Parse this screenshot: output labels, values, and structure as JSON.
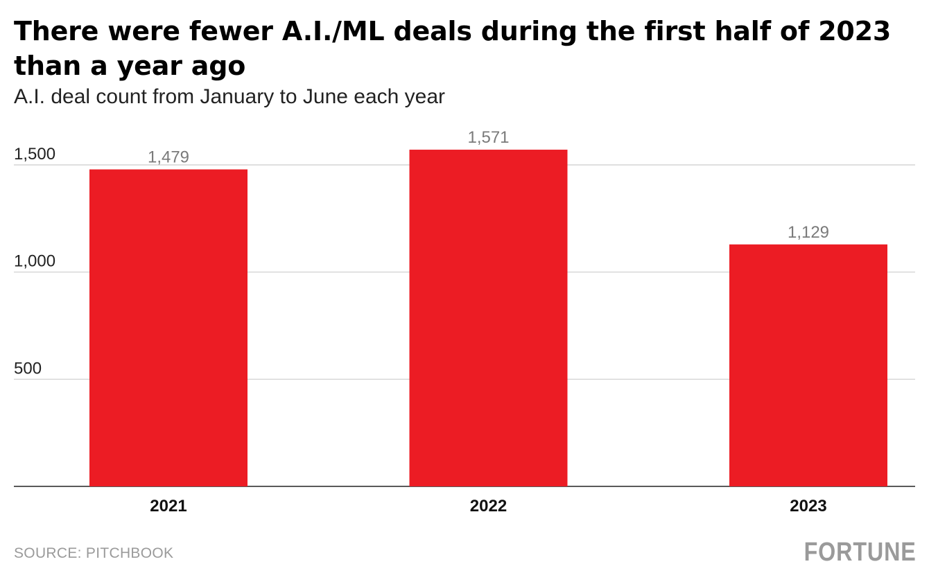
{
  "chart_data": {
    "type": "bar",
    "title": "There were fewer A.I./ML deals during the first half of 2023 than a year ago",
    "subtitle": "A.I. deal count from January to June each year",
    "categories": [
      "2021",
      "2022",
      "2023"
    ],
    "values": [
      1479,
      1571,
      1129
    ],
    "value_labels": [
      "1,479",
      "1,571",
      "1,129"
    ],
    "ylim": [
      0,
      1500
    ],
    "y_ticks": [
      500,
      1000,
      1500
    ],
    "y_tick_labels": [
      "500",
      "1,000",
      "1,500"
    ],
    "xlabel": "",
    "ylabel": "",
    "grid": true,
    "colors": {
      "bar": "#ec1c24",
      "grid": "#cccccc",
      "axis": "#222222",
      "value_label": "#7a7a7a"
    }
  },
  "footer": {
    "source": "SOURCE: PITCHBOOK",
    "logo": "FORTUNE"
  }
}
